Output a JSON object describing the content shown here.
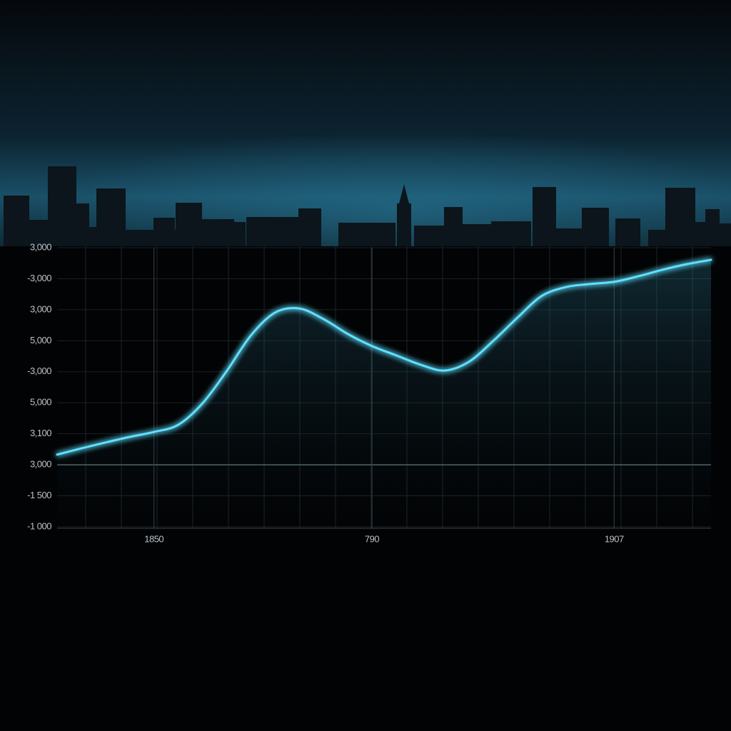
{
  "chart_data": {
    "type": "line",
    "y_categories": [
      "-1 000",
      "-1 500",
      "3,000",
      "3,100",
      "5,000",
      "-3,000",
      "5,000",
      "3,000",
      "-3,000",
      "3,000"
    ],
    "categories": [
      null,
      null,
      null,
      null,
      "1850",
      null,
      null,
      null,
      null,
      null,
      null,
      null,
      null,
      "790",
      null,
      null,
      null,
      null,
      null,
      null,
      null,
      null,
      null,
      "1907",
      null,
      null,
      null,
      null
    ],
    "values": [
      2.33,
      2.53,
      2.72,
      2.9,
      3.06,
      3.29,
      3.98,
      5.02,
      6.17,
      6.91,
      7.04,
      6.7,
      6.22,
      5.83,
      5.53,
      5.23,
      5.04,
      5.32,
      5.99,
      6.74,
      7.44,
      7.73,
      7.83,
      7.9,
      8.08,
      8.29,
      8.47,
      8.61
    ],
    "color": "#5fe0ff",
    "grid": true
  }
}
